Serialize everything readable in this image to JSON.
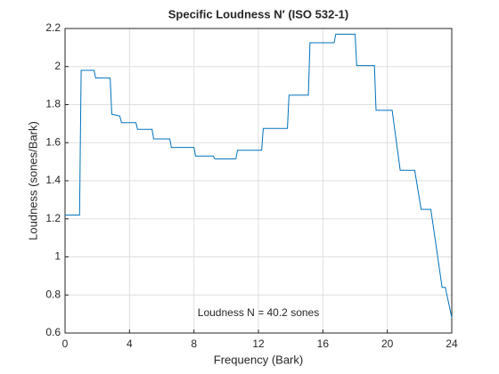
{
  "chart_data": {
    "type": "line",
    "title": "Specific Loudness N′ (ISO 532-1)",
    "x_label": "Frequency (Bark)",
    "y_label": "Loudness (sones/Bark)",
    "annotation": "Loudness N = 40.2 sones",
    "x": [
      0,
      0.9,
      1.0,
      1.8,
      1.9,
      2.8,
      2.9,
      3.4,
      3.5,
      4.4,
      4.5,
      5.4,
      5.5,
      6.5,
      6.6,
      8.0,
      8.1,
      9.2,
      9.3,
      10.6,
      10.7,
      12.2,
      12.3,
      13.8,
      13.9,
      15.1,
      15.2,
      16.7,
      16.8,
      18.0,
      18.1,
      19.2,
      19.3,
      20.3,
      20.8,
      21.7,
      22.1,
      22.7,
      23.4,
      23.6,
      24.0
    ],
    "series": [
      {
        "name": "Specific loudness",
        "color": "#0072bd",
        "values": [
          1.22,
          1.22,
          1.98,
          1.98,
          1.94,
          1.94,
          1.75,
          1.74,
          1.705,
          1.705,
          1.67,
          1.67,
          1.62,
          1.62,
          1.575,
          1.575,
          1.53,
          1.53,
          1.515,
          1.515,
          1.56,
          1.56,
          1.675,
          1.675,
          1.85,
          1.85,
          2.125,
          2.125,
          2.17,
          2.17,
          2.005,
          2.005,
          1.77,
          1.77,
          1.455,
          1.455,
          1.25,
          1.25,
          0.84,
          0.84,
          0.68
        ]
      }
    ],
    "xlim": [
      0,
      24
    ],
    "xticks": [
      0,
      4,
      8,
      12,
      16,
      20,
      24
    ],
    "ylim": [
      0.6,
      2.2
    ],
    "yticks": [
      0.6,
      0.8,
      1,
      1.2,
      1.4,
      1.6,
      1.8,
      2,
      2.2
    ],
    "grid": true
  }
}
